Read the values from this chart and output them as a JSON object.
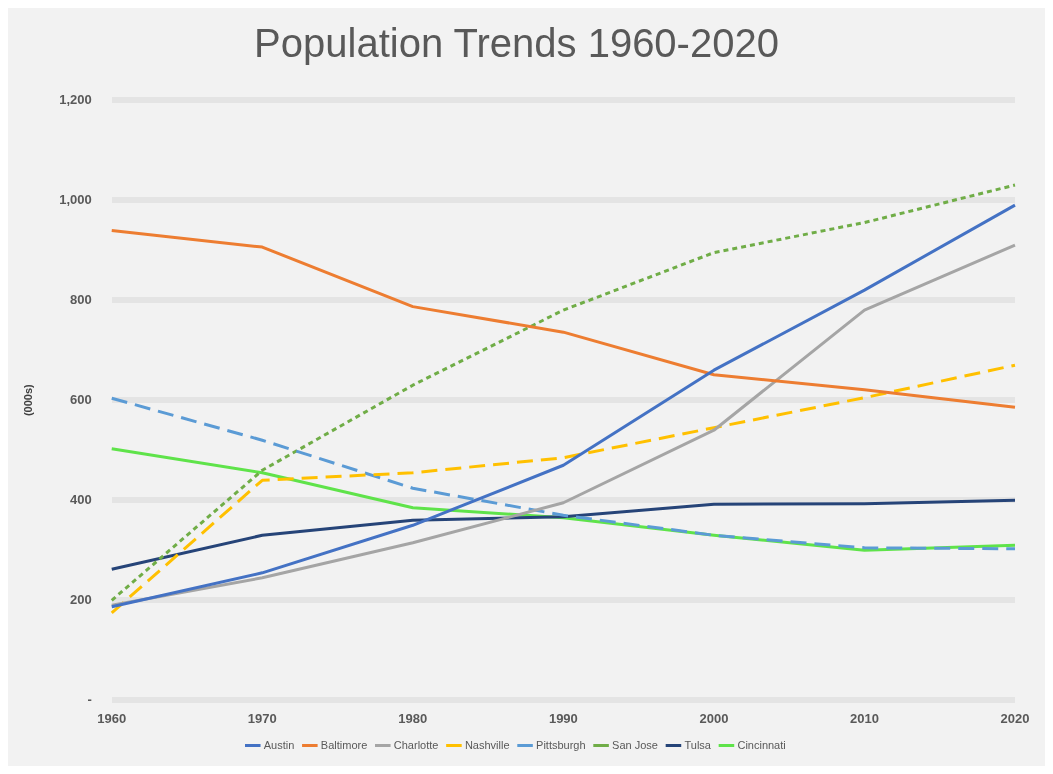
{
  "chart_data": {
    "type": "line",
    "title": "Population Trends 1960-2020",
    "ylabel": "(000s)",
    "categories": [
      "1960",
      "1970",
      "1980",
      "1990",
      "2000",
      "2010",
      "2020"
    ],
    "series": [
      {
        "name": "Austin",
        "color": "#4472c4",
        "line_style": "solid",
        "values": [
          187,
          255,
          350,
          470,
          660,
          820,
          990
        ]
      },
      {
        "name": "Baltimore",
        "color": "#ed7d31",
        "line_style": "solid",
        "values": [
          939,
          906,
          787,
          736,
          651,
          621,
          586
        ]
      },
      {
        "name": "Charlotte",
        "color": "#a5a5a5",
        "line_style": "solid",
        "values": [
          190,
          245,
          315,
          395,
          540,
          780,
          910
        ]
      },
      {
        "name": "Nashville",
        "color": "#ffc000",
        "line_style": "dashed",
        "values": [
          175,
          440,
          455,
          485,
          545,
          605,
          670
        ]
      },
      {
        "name": "Pittsburgh",
        "color": "#5b9bd5",
        "line_style": "dashed",
        "values": [
          604,
          520,
          424,
          370,
          330,
          305,
          303
        ]
      },
      {
        "name": "San Jose",
        "color": "#70ad47",
        "line_style": "dotted",
        "values": [
          200,
          460,
          630,
          780,
          895,
          955,
          1030
        ]
      },
      {
        "name": "Tulsa",
        "color": "#264478",
        "line_style": "solid",
        "values": [
          262,
          330,
          360,
          367,
          392,
          393,
          400
        ]
      },
      {
        "name": "Cincinnati",
        "color": "#5fe34a",
        "line_style": "solid",
        "values": [
          503,
          455,
          385,
          365,
          330,
          300,
          310
        ]
      }
    ],
    "ylim": [
      0,
      1200
    ],
    "yticks": [
      {
        "value": 0,
        "label": "-"
      },
      200,
      400,
      600,
      800,
      {
        "value": 1000,
        "label": "1,000"
      },
      {
        "value": 1200,
        "label": "1,200"
      }
    ],
    "grid": "y",
    "legend": "bottom",
    "marker": "none"
  }
}
